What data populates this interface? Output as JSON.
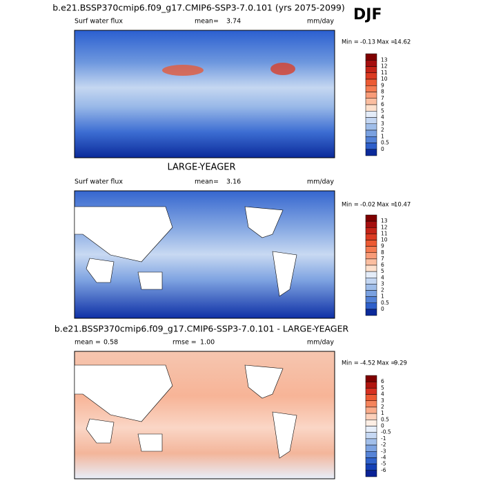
{
  "season": "DJF",
  "panels": [
    {
      "title": "b.e21.BSSP370cmip6.f09_g17.CMIP6-SSP3-7.0.101 (yrs 2075-2099)",
      "field": "Surf water flux",
      "stat1_label": "mean=",
      "stat1": "3.74",
      "units": "mm/day",
      "min_label": "Min =",
      "min": "-0.13",
      "max_label": "Max =",
      "max": "14.62",
      "colorbar_labels": [
        "13",
        "12",
        "11",
        "10",
        "9",
        "8",
        "7",
        "6",
        "5",
        "4",
        "3",
        "2",
        "1",
        "0.5",
        "0"
      ],
      "colorbar_colors": [
        "#7f0000",
        "#a50f0f",
        "#c42418",
        "#db3b22",
        "#ec5a33",
        "#f47b52",
        "#f89c79",
        "#fbbea0",
        "#fde0cc",
        "#e4ecf8",
        "#c3d6f2",
        "#9fbde9",
        "#7aa1e0",
        "#5482d6",
        "#2e5fca",
        "#0b2a9a"
      ]
    },
    {
      "title": "LARGE-YEAGER",
      "field": "Surf water flux",
      "stat1_label": "mean=",
      "stat1": "3.16",
      "units": "mm/day",
      "min_label": "Min =",
      "min": "-0.02",
      "max_label": "Max =",
      "max": "10.47",
      "colorbar_labels": [
        "13",
        "12",
        "11",
        "10",
        "9",
        "8",
        "7",
        "6",
        "5",
        "4",
        "3",
        "2",
        "1",
        "0.5",
        "0"
      ],
      "colorbar_colors": [
        "#7f0000",
        "#a50f0f",
        "#c42418",
        "#db3b22",
        "#ec5a33",
        "#f47b52",
        "#f89c79",
        "#fbbea0",
        "#fde0cc",
        "#e4ecf8",
        "#c3d6f2",
        "#9fbde9",
        "#7aa1e0",
        "#5482d6",
        "#2e5fca",
        "#0b2a9a"
      ]
    },
    {
      "title": "b.e21.BSSP370cmip6.f09_g17.CMIP6-SSP3-7.0.101 - LARGE-YEAGER",
      "stat1_label": "mean =",
      "stat1": "0.58",
      "stat2_label": "rmse =",
      "stat2": "1.00",
      "units": "mm/day",
      "min_label": "Min =",
      "min": "-4.52",
      "max_label": "Max =",
      "max": "9.29",
      "colorbar_labels": [
        "6",
        "5",
        "4",
        "3",
        "2",
        "1",
        "0.5",
        "0",
        "-0.5",
        "-1",
        "-2",
        "-3",
        "-4",
        "-5",
        "-6"
      ],
      "colorbar_colors": [
        "#7f0000",
        "#b0150f",
        "#d63020",
        "#ec5a33",
        "#f5845c",
        "#f9ab8a",
        "#fcd0ba",
        "#fdeee4",
        "#e6eefa",
        "#c6d8f3",
        "#a2bfea",
        "#7da3e1",
        "#5784d7",
        "#3062cb",
        "#1440b5",
        "#0a2296"
      ]
    }
  ]
}
